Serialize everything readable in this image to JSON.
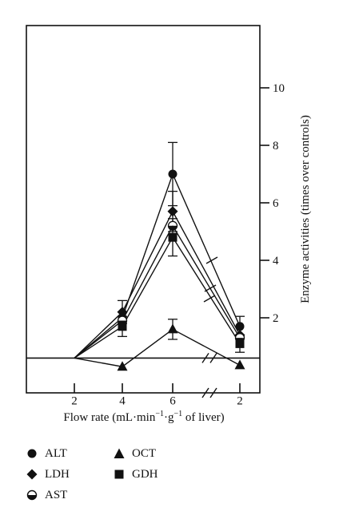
{
  "chart_data": {
    "type": "line",
    "x_ticks": [
      "2",
      "4",
      "6",
      "2"
    ],
    "xlabel_parts": {
      "pre": "Flow rate (mL·min",
      "sup1": "−1",
      "mid": "·g",
      "sup2": "−1",
      "post": " of liver)"
    },
    "ylabel": "Enzyme activities (times over controls)",
    "y_ticks": [
      2,
      4,
      6,
      8,
      10
    ],
    "ylim": [
      0,
      12
    ],
    "baseline": 0.6,
    "x_axis_break": true,
    "legend": {
      "placement": "bottom-left"
    },
    "series": [
      {
        "name": "ALT",
        "marker": "circle",
        "values": [
          0.6,
          2.0,
          7.0,
          1.7
        ],
        "err": [
          0,
          0,
          1.1,
          0.35
        ]
      },
      {
        "name": "LDH",
        "marker": "diamond",
        "values": [
          0.6,
          2.2,
          5.7,
          1.4
        ],
        "err": [
          0,
          0.4,
          0.7,
          0
        ]
      },
      {
        "name": "AST",
        "marker": "half-circle",
        "values": [
          0.6,
          1.9,
          5.2,
          1.3
        ],
        "err": [
          0,
          0,
          0,
          0
        ]
      },
      {
        "name": "OCT",
        "marker": "triangle",
        "values": [
          0.6,
          0.3,
          1.6,
          0.35
        ],
        "err": [
          0,
          0,
          0.35,
          0
        ]
      },
      {
        "name": "GDH",
        "marker": "square",
        "values": [
          0.6,
          1.7,
          4.8,
          1.1
        ],
        "err": [
          0,
          0.35,
          0.65,
          0.3
        ]
      }
    ]
  }
}
